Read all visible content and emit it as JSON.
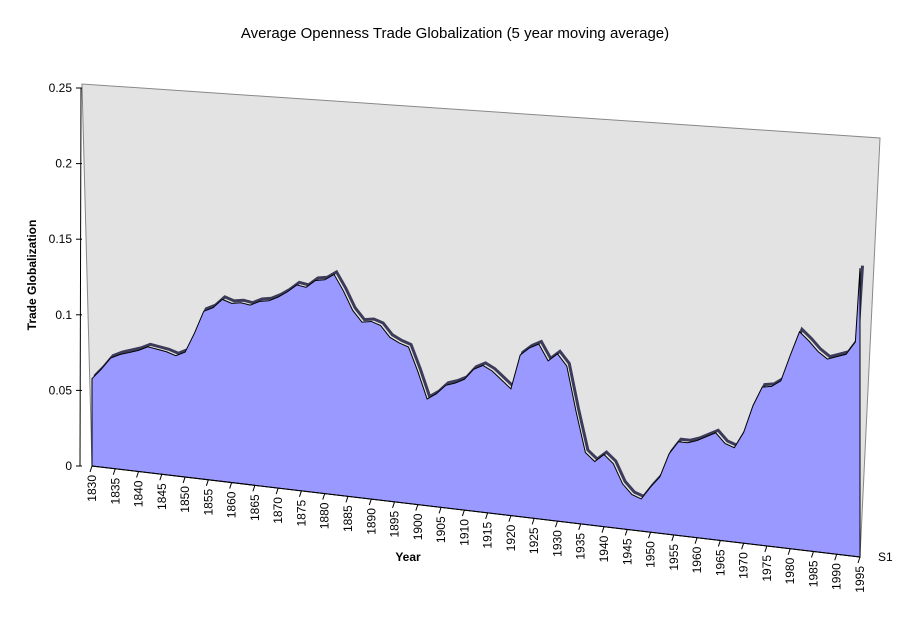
{
  "chart_data": {
    "type": "area",
    "title": "Average Openness Trade Globalization (5 year moving average)",
    "xlabel": "Year",
    "ylabel": "Trade Globalization",
    "ylim": [
      0,
      0.25
    ],
    "yticks": [
      "0",
      "0.05",
      "0.1",
      "0.15",
      "0.2",
      "0.25"
    ],
    "yticks_values": [
      0,
      0.05,
      0.1,
      0.15,
      0.2,
      0.25
    ],
    "xlim": [
      1830,
      1995
    ],
    "xticks": [
      1830,
      1835,
      1840,
      1845,
      1850,
      1855,
      1860,
      1865,
      1870,
      1875,
      1880,
      1885,
      1890,
      1895,
      1900,
      1905,
      1910,
      1915,
      1920,
      1925,
      1930,
      1935,
      1940,
      1945,
      1950,
      1955,
      1960,
      1965,
      1970,
      1975,
      1980,
      1985,
      1990,
      1995
    ],
    "three_d": true,
    "series": [
      {
        "name": "S1",
        "color": "#9999ff",
        "x": [
          1830,
          1832,
          1834,
          1836,
          1838,
          1840,
          1842,
          1844,
          1846,
          1848,
          1850,
          1852,
          1854,
          1856,
          1858,
          1860,
          1862,
          1864,
          1866,
          1868,
          1870,
          1872,
          1874,
          1876,
          1878,
          1880,
          1882,
          1884,
          1886,
          1888,
          1890,
          1892,
          1894,
          1896,
          1898,
          1900,
          1902,
          1904,
          1906,
          1908,
          1910,
          1912,
          1914,
          1916,
          1918,
          1920,
          1922,
          1924,
          1926,
          1928,
          1930,
          1932,
          1934,
          1936,
          1938,
          1940,
          1942,
          1944,
          1946,
          1948,
          1950,
          1952,
          1954,
          1956,
          1958,
          1960,
          1962,
          1964,
          1966,
          1968,
          1970,
          1972,
          1974,
          1976,
          1978,
          1980,
          1982,
          1984,
          1986,
          1988,
          1990,
          1992,
          1994,
          1995
        ],
        "values": [
          0.058,
          0.065,
          0.073,
          0.076,
          0.078,
          0.08,
          0.083,
          0.082,
          0.081,
          0.079,
          0.082,
          0.095,
          0.11,
          0.113,
          0.119,
          0.117,
          0.118,
          0.117,
          0.12,
          0.121,
          0.124,
          0.128,
          0.133,
          0.132,
          0.137,
          0.138,
          0.142,
          0.132,
          0.12,
          0.113,
          0.114,
          0.112,
          0.105,
          0.102,
          0.1,
          0.085,
          0.068,
          0.072,
          0.078,
          0.08,
          0.083,
          0.09,
          0.093,
          0.09,
          0.085,
          0.08,
          0.102,
          0.107,
          0.11,
          0.1,
          0.105,
          0.098,
          0.07,
          0.045,
          0.04,
          0.045,
          0.04,
          0.028,
          0.022,
          0.02,
          0.028,
          0.035,
          0.05,
          0.058,
          0.058,
          0.06,
          0.063,
          0.066,
          0.06,
          0.058,
          0.068,
          0.085,
          0.097,
          0.098,
          0.102,
          0.118,
          0.133,
          0.128,
          0.122,
          0.118,
          0.12,
          0.122,
          0.13,
          0.175
        ]
      }
    ]
  }
}
